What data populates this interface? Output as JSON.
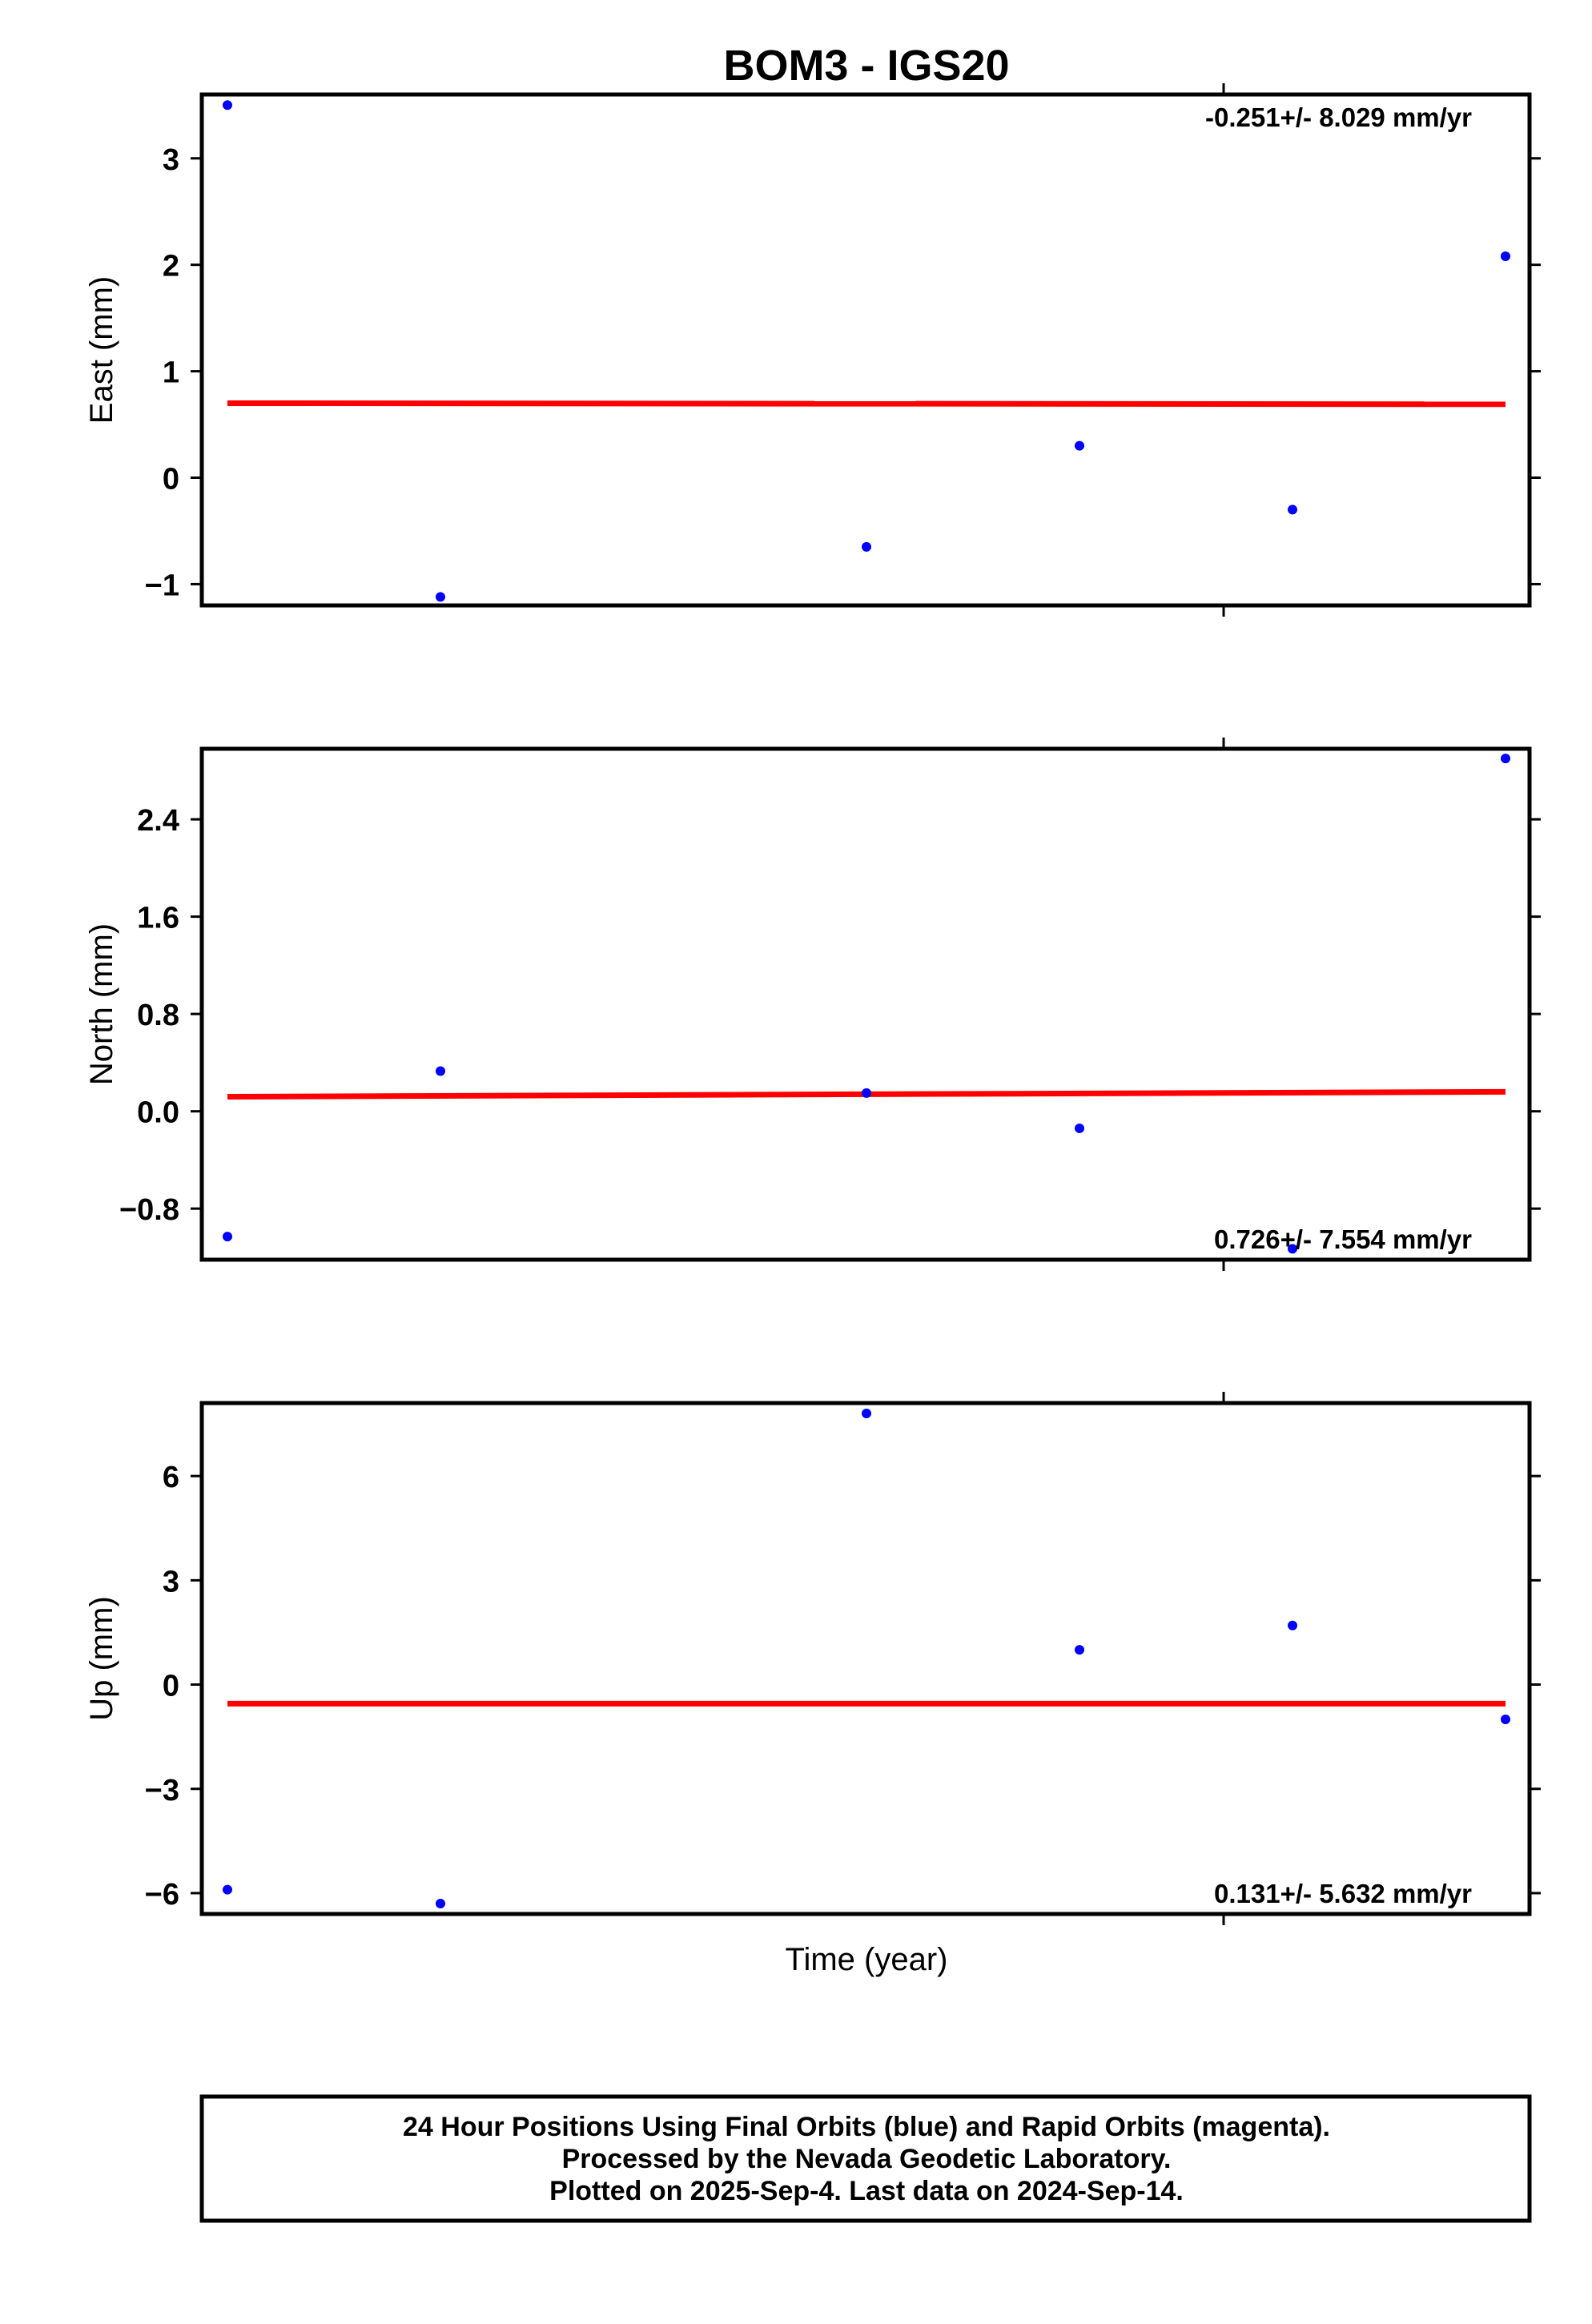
{
  "colors": {
    "points": "#0000ff",
    "trend": "#ff0000",
    "frame": "#000000",
    "background": "#ffffff"
  },
  "chart_data": {
    "type": "scatter",
    "title": "BOM3 - IGS20",
    "xlabel": "Time (year)",
    "x_index": [
      0,
      1,
      3,
      4,
      5,
      6
    ],
    "panels": [
      {
        "id": "east",
        "ylabel": "East (mm)",
        "ylim": [
          -1.2,
          3.6
        ],
        "yticks": [
          -1,
          0,
          1,
          2,
          3
        ],
        "ytick_labels": [
          "−1",
          "0",
          "1",
          "2",
          "3"
        ],
        "values": [
          3.5,
          -1.12,
          -0.65,
          0.3,
          -0.3,
          2.08
        ],
        "trend": [
          0.7,
          0.69
        ],
        "rate_text": "-0.251+/- 8.029 mm/yr",
        "rate_position": "top-right"
      },
      {
        "id": "north",
        "ylabel": "North (mm)",
        "ylim": [
          -1.22,
          2.98
        ],
        "yticks": [
          -0.8,
          0.0,
          0.8,
          1.6,
          2.4
        ],
        "ytick_labels": [
          "−0.8",
          "0.0",
          "0.8",
          "1.6",
          "2.4"
        ],
        "values": [
          -1.03,
          0.33,
          0.15,
          -0.14,
          -1.13,
          2.9
        ],
        "trend": [
          0.12,
          0.16
        ],
        "rate_text": "0.726+/- 7.554 mm/yr",
        "rate_position": "bottom-right"
      },
      {
        "id": "up",
        "ylabel": "Up (mm)",
        "ylim": [
          -6.6,
          8.1
        ],
        "yticks": [
          -6,
          -3,
          0,
          3,
          6
        ],
        "ytick_labels": [
          "−6",
          "−3",
          "0",
          "3",
          "6"
        ],
        "values": [
          -5.9,
          -6.3,
          7.8,
          1.0,
          1.7,
          -1.0
        ],
        "trend": [
          -0.55,
          -0.55
        ],
        "rate_text": "0.131+/- 5.632 mm/yr",
        "rate_position": "bottom-right"
      }
    ]
  },
  "footer": {
    "line1": "24 Hour Positions Using Final Orbits (blue) and Rapid Orbits (magenta).",
    "line2": "Processed by the Nevada Geodetic Laboratory.",
    "line3": "Plotted on 2025-Sep-4. Last data on 2024-Sep-14."
  }
}
